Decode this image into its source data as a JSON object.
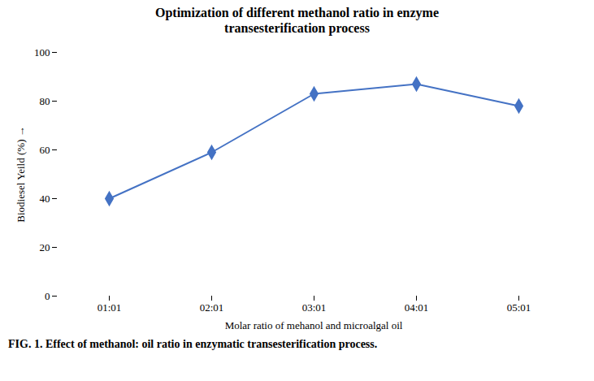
{
  "chart_data": {
    "type": "line",
    "title": "Optimization of different methanol ratio in enzyme\ntransesterification process",
    "caption": "FIG. 1. Effect of methanol: oil ratio in enzymatic transesterification process.",
    "x_label": "Molar ratio of mehanol and microalgal oil",
    "y_label": "Biodiesel Yeild (%)",
    "categories": [
      "01:01",
      "02:01",
      "03:01",
      "04:01",
      "05:01"
    ],
    "values": [
      40,
      59,
      83,
      87,
      78
    ],
    "color": "#4472C4",
    "marker": "diamond",
    "ylim": [
      0,
      100
    ],
    "yticks": [
      0,
      20,
      40,
      60,
      80,
      100
    ],
    "grid": false
  }
}
